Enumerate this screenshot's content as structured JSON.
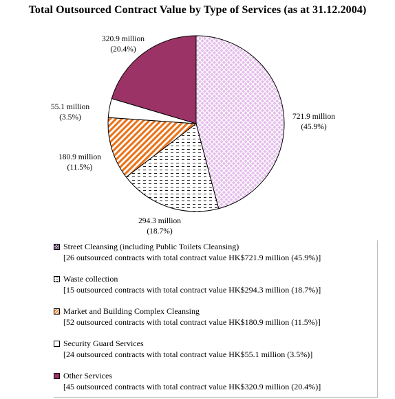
{
  "chart_data": {
    "type": "pie",
    "title": "Total Outsourced Contract Value by Type of Services (as at 31.12.2004)",
    "slices": [
      {
        "name": "Street Cleansing (including Public Toilets Cleansing)",
        "value": 721.9,
        "percent": 45.9,
        "label_value": "721.9 million",
        "label_percent": "(45.9%)",
        "legend_detail": "[26 outsourced contracts with total contract value HK$721.9 million (45.9%)]",
        "fill": "#e4bdeb",
        "pattern": "crosshatch"
      },
      {
        "name": "Waste collection",
        "value": 294.3,
        "percent": 18.7,
        "label_value": "294.3 million",
        "label_percent": "(18.7%)",
        "legend_detail": "[15 outsourced contracts with total contract value HK$294.3 million (18.7%)]",
        "fill": "#ffffff",
        "pattern": "dashed"
      },
      {
        "name": "Market and Building Complex Cleansing",
        "value": 180.9,
        "percent": 11.5,
        "label_value": "180.9 million",
        "label_percent": "(11.5%)",
        "legend_detail": "[52 outsourced contracts with total contract value HK$180.9 million (11.5%)]",
        "fill": "#e8741c",
        "pattern": "diagonal"
      },
      {
        "name": "Security Guard Services",
        "value": 55.1,
        "percent": 3.5,
        "label_value": "55.1 million",
        "label_percent": "(3.5%)",
        "legend_detail": "[24 outsourced contracts with total contract value HK$55.1 million (3.5%)]",
        "fill": "#ffffff",
        "pattern": "solid"
      },
      {
        "name": "Other Services",
        "value": 320.9,
        "percent": 20.4,
        "label_value": "320.9 million",
        "label_percent": "(20.4%)",
        "legend_detail": "[45 outsourced contracts with total contract value HK$320.9 million (20.4%)]",
        "fill": "#9b3366",
        "pattern": "solid"
      }
    ],
    "legend_position": "bottom"
  }
}
